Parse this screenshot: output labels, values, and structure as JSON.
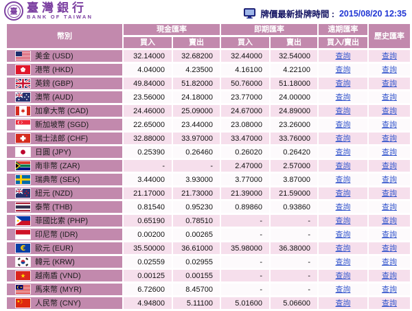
{
  "header": {
    "logo": {
      "seal_char": "臺",
      "chinese": "臺灣銀行",
      "english": "BANK OF TAIWAN"
    },
    "quote_time_label": "牌價最新掛牌時間 :",
    "quote_time_value": "2015/08/20 12:35"
  },
  "table": {
    "col_currency": "幣別",
    "col_cash": "現金匯率",
    "col_spot": "即期匯率",
    "col_forward": "遠期匯率",
    "col_history": "歷史匯率",
    "col_buy": "買入",
    "col_sell": "賣出",
    "col_buysell": "買入/賣出",
    "query_label": "查詢",
    "rows": [
      {
        "flag": "us",
        "name": "美金 (USD)",
        "cash_buy": "32.14000",
        "cash_sell": "32.68200",
        "spot_buy": "32.44000",
        "spot_sell": "32.54000"
      },
      {
        "flag": "hk",
        "name": "港幣 (HKD)",
        "cash_buy": "4.04000",
        "cash_sell": "4.23500",
        "spot_buy": "4.16100",
        "spot_sell": "4.22100"
      },
      {
        "flag": "gb",
        "name": "英鎊 (GBP)",
        "cash_buy": "49.84000",
        "cash_sell": "51.82000",
        "spot_buy": "50.76000",
        "spot_sell": "51.18000"
      },
      {
        "flag": "au",
        "name": "澳幣 (AUD)",
        "cash_buy": "23.56000",
        "cash_sell": "24.18000",
        "spot_buy": "23.77000",
        "spot_sell": "24.00000"
      },
      {
        "flag": "ca",
        "name": "加拿大幣 (CAD)",
        "cash_buy": "24.46000",
        "cash_sell": "25.09000",
        "spot_buy": "24.67000",
        "spot_sell": "24.89000"
      },
      {
        "flag": "sg",
        "name": "新加坡幣 (SGD)",
        "cash_buy": "22.65000",
        "cash_sell": "23.44000",
        "spot_buy": "23.08000",
        "spot_sell": "23.26000"
      },
      {
        "flag": "ch",
        "name": "瑞士法郎 (CHF)",
        "cash_buy": "32.88000",
        "cash_sell": "33.97000",
        "spot_buy": "33.47000",
        "spot_sell": "33.76000"
      },
      {
        "flag": "jp",
        "name": "日圓 (JPY)",
        "cash_buy": "0.25390",
        "cash_sell": "0.26460",
        "spot_buy": "0.26020",
        "spot_sell": "0.26420"
      },
      {
        "flag": "za",
        "name": "南非幣 (ZAR)",
        "cash_buy": "-",
        "cash_sell": "-",
        "spot_buy": "2.47000",
        "spot_sell": "2.57000"
      },
      {
        "flag": "se",
        "name": "瑞典幣 (SEK)",
        "cash_buy": "3.44000",
        "cash_sell": "3.93000",
        "spot_buy": "3.77000",
        "spot_sell": "3.87000"
      },
      {
        "flag": "nz",
        "name": "紐元 (NZD)",
        "cash_buy": "21.17000",
        "cash_sell": "21.73000",
        "spot_buy": "21.39000",
        "spot_sell": "21.59000"
      },
      {
        "flag": "th",
        "name": "泰幣 (THB)",
        "cash_buy": "0.81540",
        "cash_sell": "0.95230",
        "spot_buy": "0.89860",
        "spot_sell": "0.93860"
      },
      {
        "flag": "ph",
        "name": "菲國比索 (PHP)",
        "cash_buy": "0.65190",
        "cash_sell": "0.78510",
        "spot_buy": "-",
        "spot_sell": "-"
      },
      {
        "flag": "id",
        "name": "印尼幣 (IDR)",
        "cash_buy": "0.00200",
        "cash_sell": "0.00265",
        "spot_buy": "-",
        "spot_sell": "-"
      },
      {
        "flag": "eu",
        "name": "歐元 (EUR)",
        "cash_buy": "35.50000",
        "cash_sell": "36.61000",
        "spot_buy": "35.98000",
        "spot_sell": "36.38000"
      },
      {
        "flag": "kr",
        "name": "韓元 (KRW)",
        "cash_buy": "0.02559",
        "cash_sell": "0.02955",
        "spot_buy": "-",
        "spot_sell": "-"
      },
      {
        "flag": "vn",
        "name": "越南盾 (VND)",
        "cash_buy": "0.00125",
        "cash_sell": "0.00155",
        "spot_buy": "-",
        "spot_sell": "-"
      },
      {
        "flag": "my",
        "name": "馬來幣 (MYR)",
        "cash_buy": "6.72600",
        "cash_sell": "8.45700",
        "spot_buy": "-",
        "spot_sell": "-"
      },
      {
        "flag": "cn",
        "name": "人民幣 (CNY)",
        "cash_buy": "4.94800",
        "cash_sell": "5.11100",
        "spot_buy": "5.01600",
        "spot_sell": "5.06600"
      }
    ]
  },
  "colors": {
    "header_mauve": "#c289ad",
    "row_pink": "#f6dfec",
    "row_white": "#fdfafc",
    "link_blue": "#3355cc",
    "logo_purple": "#7b3fa0",
    "datetime_blue": "#1f35d4",
    "label_navy": "#101060"
  }
}
